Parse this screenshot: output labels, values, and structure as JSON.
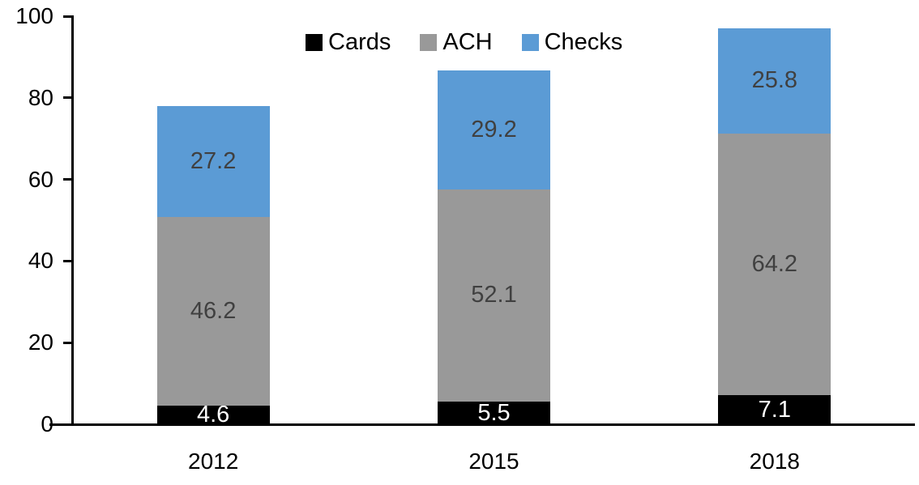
{
  "chart_data": {
    "type": "bar",
    "subtype": "stacked-vertical",
    "title": "",
    "xlabel": "",
    "ylabel": "",
    "categories": [
      "2012",
      "2015",
      "2018"
    ],
    "series": [
      {
        "name": "Cards",
        "color": "#000000",
        "label_color": "#ffffff",
        "values": [
          4.6,
          5.5,
          7.1
        ]
      },
      {
        "name": "ACH",
        "color": "#999999",
        "label_color": "#404040",
        "values": [
          46.2,
          52.1,
          64.2
        ]
      },
      {
        "name": "Checks",
        "color": "#5B9BD5",
        "label_color": "#404040",
        "values": [
          27.2,
          29.2,
          25.8
        ]
      }
    ],
    "stack_totals": [
      78.0,
      86.8,
      97.1
    ],
    "ylim": [
      0,
      100
    ],
    "yticks": [
      0,
      20,
      40,
      60,
      80,
      100
    ],
    "grid": false,
    "legend_position": "top-center",
    "axis_color": "#000000",
    "background_color": "#ffffff"
  }
}
